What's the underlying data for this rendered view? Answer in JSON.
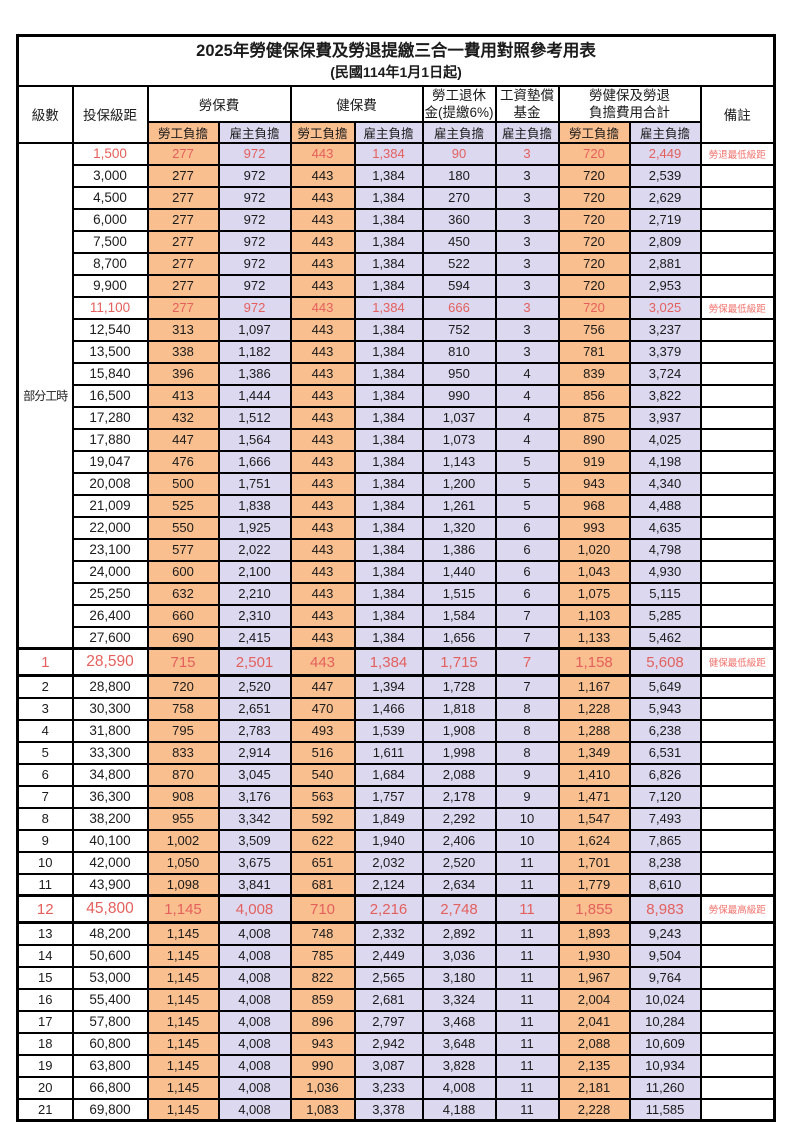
{
  "title": "2025年勞健保保費及勞退提繳三合一費用對照參考用表",
  "subtitle": "(民國114年1月1日起)",
  "columns": {
    "level": "級數",
    "bracket": "投保級距",
    "labor": "勞保費",
    "health": "健保費",
    "pension_line1": "勞工退休",
    "pension_line2": "金(提繳6%)",
    "wage_fund_line1": "工資墊償",
    "wage_fund_line2": "基金",
    "total_line1": "勞健保及勞退",
    "total_line2": "負擔費用合計",
    "note": "備註",
    "employee": "勞工負擔",
    "employer": "雇主負擔"
  },
  "colors": {
    "employee_bg": "#FABF8F",
    "employer_bg": "#DCD8F0",
    "red_value_text": "#E4605C",
    "note_text": "#F0716B"
  },
  "part_time_label": "部分工時",
  "part_time_rowspan": 23,
  "rows": [
    {
      "level": null,
      "bracket": "1,500",
      "values": [
        "277",
        "972",
        "443",
        "1,384",
        "90",
        "3",
        "720",
        "2,449"
      ],
      "note": "勞退最低級距",
      "red": true,
      "special": false
    },
    {
      "level": null,
      "bracket": "3,000",
      "values": [
        "277",
        "972",
        "443",
        "1,384",
        "180",
        "3",
        "720",
        "2,539"
      ],
      "note": "",
      "red": false,
      "special": false
    },
    {
      "level": null,
      "bracket": "4,500",
      "values": [
        "277",
        "972",
        "443",
        "1,384",
        "270",
        "3",
        "720",
        "2,629"
      ],
      "note": "",
      "red": false,
      "special": false
    },
    {
      "level": null,
      "bracket": "6,000",
      "values": [
        "277",
        "972",
        "443",
        "1,384",
        "360",
        "3",
        "720",
        "2,719"
      ],
      "note": "",
      "red": false,
      "special": false
    },
    {
      "level": null,
      "bracket": "7,500",
      "values": [
        "277",
        "972",
        "443",
        "1,384",
        "450",
        "3",
        "720",
        "2,809"
      ],
      "note": "",
      "red": false,
      "special": false
    },
    {
      "level": null,
      "bracket": "8,700",
      "values": [
        "277",
        "972",
        "443",
        "1,384",
        "522",
        "3",
        "720",
        "2,881"
      ],
      "note": "",
      "red": false,
      "special": false
    },
    {
      "level": null,
      "bracket": "9,900",
      "values": [
        "277",
        "972",
        "443",
        "1,384",
        "594",
        "3",
        "720",
        "2,953"
      ],
      "note": "",
      "red": false,
      "special": false
    },
    {
      "level": null,
      "bracket": "11,100",
      "values": [
        "277",
        "972",
        "443",
        "1,384",
        "666",
        "3",
        "720",
        "3,025"
      ],
      "note": "勞保最低級距",
      "red": true,
      "special": false
    },
    {
      "level": null,
      "bracket": "12,540",
      "values": [
        "313",
        "1,097",
        "443",
        "1,384",
        "752",
        "3",
        "756",
        "3,237"
      ],
      "note": "",
      "red": false,
      "special": false
    },
    {
      "level": null,
      "bracket": "13,500",
      "values": [
        "338",
        "1,182",
        "443",
        "1,384",
        "810",
        "3",
        "781",
        "3,379"
      ],
      "note": "",
      "red": false,
      "special": false
    },
    {
      "level": null,
      "bracket": "15,840",
      "values": [
        "396",
        "1,386",
        "443",
        "1,384",
        "950",
        "4",
        "839",
        "3,724"
      ],
      "note": "",
      "red": false,
      "special": false
    },
    {
      "level": null,
      "bracket": "16,500",
      "values": [
        "413",
        "1,444",
        "443",
        "1,384",
        "990",
        "4",
        "856",
        "3,822"
      ],
      "note": "",
      "red": false,
      "special": false
    },
    {
      "level": null,
      "bracket": "17,280",
      "values": [
        "432",
        "1,512",
        "443",
        "1,384",
        "1,037",
        "4",
        "875",
        "3,937"
      ],
      "note": "",
      "red": false,
      "special": false
    },
    {
      "level": null,
      "bracket": "17,880",
      "values": [
        "447",
        "1,564",
        "443",
        "1,384",
        "1,073",
        "4",
        "890",
        "4,025"
      ],
      "note": "",
      "red": false,
      "special": false
    },
    {
      "level": null,
      "bracket": "19,047",
      "values": [
        "476",
        "1,666",
        "443",
        "1,384",
        "1,143",
        "5",
        "919",
        "4,198"
      ],
      "note": "",
      "red": false,
      "special": false
    },
    {
      "level": null,
      "bracket": "20,008",
      "values": [
        "500",
        "1,751",
        "443",
        "1,384",
        "1,200",
        "5",
        "943",
        "4,340"
      ],
      "note": "",
      "red": false,
      "special": false
    },
    {
      "level": null,
      "bracket": "21,009",
      "values": [
        "525",
        "1,838",
        "443",
        "1,384",
        "1,261",
        "5",
        "968",
        "4,488"
      ],
      "note": "",
      "red": false,
      "special": false
    },
    {
      "level": null,
      "bracket": "22,000",
      "values": [
        "550",
        "1,925",
        "443",
        "1,384",
        "1,320",
        "6",
        "993",
        "4,635"
      ],
      "note": "",
      "red": false,
      "special": false
    },
    {
      "level": null,
      "bracket": "23,100",
      "values": [
        "577",
        "2,022",
        "443",
        "1,384",
        "1,386",
        "6",
        "1,020",
        "4,798"
      ],
      "note": "",
      "red": false,
      "special": false
    },
    {
      "level": null,
      "bracket": "24,000",
      "values": [
        "600",
        "2,100",
        "443",
        "1,384",
        "1,440",
        "6",
        "1,043",
        "4,930"
      ],
      "note": "",
      "red": false,
      "special": false
    },
    {
      "level": null,
      "bracket": "25,250",
      "values": [
        "632",
        "2,210",
        "443",
        "1,384",
        "1,515",
        "6",
        "1,075",
        "5,115"
      ],
      "note": "",
      "red": false,
      "special": false
    },
    {
      "level": null,
      "bracket": "26,400",
      "values": [
        "660",
        "2,310",
        "443",
        "1,384",
        "1,584",
        "7",
        "1,103",
        "5,285"
      ],
      "note": "",
      "red": false,
      "special": false
    },
    {
      "level": null,
      "bracket": "27,600",
      "values": [
        "690",
        "2,415",
        "443",
        "1,384",
        "1,656",
        "7",
        "1,133",
        "5,462"
      ],
      "note": "",
      "red": false,
      "special": false
    },
    {
      "level": "1",
      "bracket": "28,590",
      "values": [
        "715",
        "2,501",
        "443",
        "1,384",
        "1,715",
        "7",
        "1,158",
        "5,608"
      ],
      "note": "健保最低級距",
      "red": true,
      "special": true
    },
    {
      "level": "2",
      "bracket": "28,800",
      "values": [
        "720",
        "2,520",
        "447",
        "1,394",
        "1,728",
        "7",
        "1,167",
        "5,649"
      ],
      "note": "",
      "red": false,
      "special": false
    },
    {
      "level": "3",
      "bracket": "30,300",
      "values": [
        "758",
        "2,651",
        "470",
        "1,466",
        "1,818",
        "8",
        "1,228",
        "5,943"
      ],
      "note": "",
      "red": false,
      "special": false
    },
    {
      "level": "4",
      "bracket": "31,800",
      "values": [
        "795",
        "2,783",
        "493",
        "1,539",
        "1,908",
        "8",
        "1,288",
        "6,238"
      ],
      "note": "",
      "red": false,
      "special": false
    },
    {
      "level": "5",
      "bracket": "33,300",
      "values": [
        "833",
        "2,914",
        "516",
        "1,611",
        "1,998",
        "8",
        "1,349",
        "6,531"
      ],
      "note": "",
      "red": false,
      "special": false
    },
    {
      "level": "6",
      "bracket": "34,800",
      "values": [
        "870",
        "3,045",
        "540",
        "1,684",
        "2,088",
        "9",
        "1,410",
        "6,826"
      ],
      "note": "",
      "red": false,
      "special": false
    },
    {
      "level": "7",
      "bracket": "36,300",
      "values": [
        "908",
        "3,176",
        "563",
        "1,757",
        "2,178",
        "9",
        "1,471",
        "7,120"
      ],
      "note": "",
      "red": false,
      "special": false
    },
    {
      "level": "8",
      "bracket": "38,200",
      "values": [
        "955",
        "3,342",
        "592",
        "1,849",
        "2,292",
        "10",
        "1,547",
        "7,493"
      ],
      "note": "",
      "red": false,
      "special": false
    },
    {
      "level": "9",
      "bracket": "40,100",
      "values": [
        "1,002",
        "3,509",
        "622",
        "1,940",
        "2,406",
        "10",
        "1,624",
        "7,865"
      ],
      "note": "",
      "red": false,
      "special": false
    },
    {
      "level": "10",
      "bracket": "42,000",
      "values": [
        "1,050",
        "3,675",
        "651",
        "2,032",
        "2,520",
        "11",
        "1,701",
        "8,238"
      ],
      "note": "",
      "red": false,
      "special": false
    },
    {
      "level": "11",
      "bracket": "43,900",
      "values": [
        "1,098",
        "3,841",
        "681",
        "2,124",
        "2,634",
        "11",
        "1,779",
        "8,610"
      ],
      "note": "",
      "red": false,
      "special": false
    },
    {
      "level": "12",
      "bracket": "45,800",
      "values": [
        "1,145",
        "4,008",
        "710",
        "2,216",
        "2,748",
        "11",
        "1,855",
        "8,983"
      ],
      "note": "勞保最高級距",
      "red": true,
      "special": true
    },
    {
      "level": "13",
      "bracket": "48,200",
      "values": [
        "1,145",
        "4,008",
        "748",
        "2,332",
        "2,892",
        "11",
        "1,893",
        "9,243"
      ],
      "note": "",
      "red": false,
      "special": false
    },
    {
      "level": "14",
      "bracket": "50,600",
      "values": [
        "1,145",
        "4,008",
        "785",
        "2,449",
        "3,036",
        "11",
        "1,930",
        "9,504"
      ],
      "note": "",
      "red": false,
      "special": false
    },
    {
      "level": "15",
      "bracket": "53,000",
      "values": [
        "1,145",
        "4,008",
        "822",
        "2,565",
        "3,180",
        "11",
        "1,967",
        "9,764"
      ],
      "note": "",
      "red": false,
      "special": false
    },
    {
      "level": "16",
      "bracket": "55,400",
      "values": [
        "1,145",
        "4,008",
        "859",
        "2,681",
        "3,324",
        "11",
        "2,004",
        "10,024"
      ],
      "note": "",
      "red": false,
      "special": false
    },
    {
      "level": "17",
      "bracket": "57,800",
      "values": [
        "1,145",
        "4,008",
        "896",
        "2,797",
        "3,468",
        "11",
        "2,041",
        "10,284"
      ],
      "note": "",
      "red": false,
      "special": false
    },
    {
      "level": "18",
      "bracket": "60,800",
      "values": [
        "1,145",
        "4,008",
        "943",
        "2,942",
        "3,648",
        "11",
        "2,088",
        "10,609"
      ],
      "note": "",
      "red": false,
      "special": false
    },
    {
      "level": "19",
      "bracket": "63,800",
      "values": [
        "1,145",
        "4,008",
        "990",
        "3,087",
        "3,828",
        "11",
        "2,135",
        "10,934"
      ],
      "note": "",
      "red": false,
      "special": false
    },
    {
      "level": "20",
      "bracket": "66,800",
      "values": [
        "1,145",
        "4,008",
        "1,036",
        "3,233",
        "4,008",
        "11",
        "2,181",
        "11,260"
      ],
      "note": "",
      "red": false,
      "special": false
    },
    {
      "level": "21",
      "bracket": "69,800",
      "values": [
        "1,145",
        "4,008",
        "1,083",
        "3,378",
        "4,188",
        "11",
        "2,228",
        "11,585"
      ],
      "note": "",
      "red": false,
      "special": false
    }
  ]
}
